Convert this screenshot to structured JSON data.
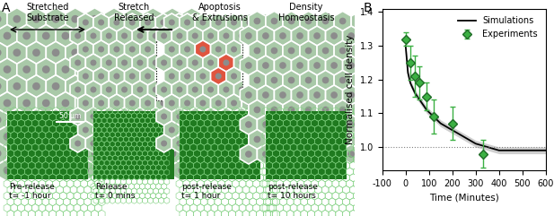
{
  "diagram": {
    "label": "A",
    "columns": [
      {
        "title": "Stretched\nSubstrate",
        "caption": "Pre-release\nt= -1 hour"
      },
      {
        "title": "Stretch\nReleased",
        "caption": "Release\nt= 0 mins"
      },
      {
        "title": "Apoptosis\n& Extrusions",
        "caption": "post-release\nt= 1 hour"
      },
      {
        "title": "Density\nHomeostasis",
        "caption": "post-release\nt= 10 hours"
      }
    ],
    "scale_bar": "50 µm"
  },
  "chart_data": {
    "label": "B",
    "type": "line",
    "xlabel": "Time (Minutes)",
    "ylabel": "Normalised cell density",
    "xlim": [
      -100,
      600
    ],
    "xticks": [
      -100,
      0,
      100,
      200,
      300,
      400,
      500,
      600
    ],
    "ylim": [
      0.93,
      1.41
    ],
    "yticks": [
      1.0,
      1.1,
      1.2,
      1.3,
      1.4
    ],
    "reference_line": 1.0,
    "legend": "upper right",
    "series": [
      {
        "name": "Simulations",
        "type": "line",
        "color": "#000000",
        "line_style": "solid",
        "x": [
          0,
          10,
          20,
          40,
          60,
          90,
          120,
          150,
          200,
          250,
          300,
          350,
          400,
          500,
          600
        ],
        "values": [
          1.3,
          1.22,
          1.19,
          1.16,
          1.14,
          1.11,
          1.09,
          1.07,
          1.05,
          1.03,
          1.01,
          1.0,
          0.99,
          0.99,
          0.99
        ],
        "spread": [
          0.01,
          0.01,
          0.01,
          0.01,
          0.01,
          0.01,
          0.01,
          0.01,
          0.01,
          0.01,
          0.01,
          0.01,
          0.01,
          0.01,
          0.01
        ]
      },
      {
        "name": "Experiments",
        "type": "scatter",
        "color": "#3cb043",
        "marker": "D",
        "x": [
          0,
          20,
          40,
          60,
          90,
          120,
          200,
          330
        ],
        "values": [
          1.32,
          1.25,
          1.21,
          1.19,
          1.15,
          1.09,
          1.07,
          0.98
        ],
        "errors": [
          0.02,
          0.05,
          0.06,
          0.05,
          0.04,
          0.05,
          0.05,
          0.04
        ]
      }
    ]
  }
}
